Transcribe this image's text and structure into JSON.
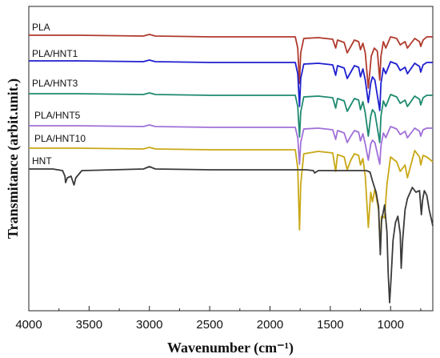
{
  "chart_data": {
    "type": "line",
    "title": "",
    "xlabel": "Wavenumber (cm⁻¹)",
    "ylabel": "Transmitance (arbit.unit.)",
    "xlim": [
      4000,
      650
    ],
    "x_reversed": true,
    "y_ticks_shown": false,
    "grid": false,
    "legend": "labels-above-each-curve",
    "xticks": [
      "4000",
      "3500",
      "3000",
      "2500",
      "2000",
      "1500",
      "1000"
    ],
    "series": [
      {
        "name": "PLA",
        "color": "#b03a2e",
        "points": [
          [
            4000,
            44
          ],
          [
            3600,
            44
          ],
          [
            3050,
            45
          ],
          [
            3000,
            43
          ],
          [
            2950,
            45
          ],
          [
            2500,
            46
          ],
          [
            2100,
            46
          ],
          [
            1900,
            46
          ],
          [
            1790,
            46
          ],
          [
            1770,
            60
          ],
          [
            1756,
            104
          ],
          [
            1745,
            66
          ],
          [
            1720,
            48
          ],
          [
            1600,
            47
          ],
          [
            1480,
            49
          ],
          [
            1455,
            60
          ],
          [
            1440,
            50
          ],
          [
            1385,
            53
          ],
          [
            1360,
            66
          ],
          [
            1330,
            58
          ],
          [
            1300,
            50
          ],
          [
            1265,
            52
          ],
          [
            1250,
            62
          ],
          [
            1230,
            54
          ],
          [
            1210,
            66
          ],
          [
            1185,
            110
          ],
          [
            1160,
            70
          ],
          [
            1135,
            60
          ],
          [
            1110,
            64
          ],
          [
            1090,
            100
          ],
          [
            1080,
            70
          ],
          [
            1060,
            52
          ],
          [
            1040,
            60
          ],
          [
            1000,
            46
          ],
          [
            950,
            48
          ],
          [
            920,
            56
          ],
          [
            880,
            52
          ],
          [
            860,
            60
          ],
          [
            800,
            48
          ],
          [
            760,
            52
          ],
          [
            750,
            58
          ],
          [
            730,
            50
          ],
          [
            700,
            46
          ],
          [
            650,
            46
          ]
        ]
      },
      {
        "name": "PLA/HNT1",
        "color": "#1f1fcf",
        "points": [
          [
            4000,
            76
          ],
          [
            3600,
            76
          ],
          [
            3050,
            77
          ],
          [
            3000,
            75
          ],
          [
            2950,
            77
          ],
          [
            2500,
            78
          ],
          [
            2100,
            78
          ],
          [
            1900,
            78
          ],
          [
            1790,
            78
          ],
          [
            1770,
            92
          ],
          [
            1755,
            133
          ],
          [
            1745,
            98
          ],
          [
            1720,
            80
          ],
          [
            1600,
            79
          ],
          [
            1480,
            81
          ],
          [
            1455,
            94
          ],
          [
            1440,
            82
          ],
          [
            1385,
            85
          ],
          [
            1360,
            98
          ],
          [
            1330,
            90
          ],
          [
            1300,
            82
          ],
          [
            1265,
            84
          ],
          [
            1250,
            96
          ],
          [
            1230,
            86
          ],
          [
            1210,
            100
          ],
          [
            1185,
            128
          ],
          [
            1165,
            104
          ],
          [
            1150,
            96
          ],
          [
            1130,
            100
          ],
          [
            1090,
            138
          ],
          [
            1080,
            104
          ],
          [
            1060,
            85
          ],
          [
            1040,
            92
          ],
          [
            1000,
            77
          ],
          [
            950,
            80
          ],
          [
            920,
            88
          ],
          [
            880,
            84
          ],
          [
            860,
            92
          ],
          [
            800,
            79
          ],
          [
            760,
            83
          ],
          [
            750,
            90
          ],
          [
            730,
            81
          ],
          [
            700,
            78
          ],
          [
            650,
            78
          ]
        ]
      },
      {
        "name": "PLA/HNT3",
        "color": "#1e8a70",
        "points": [
          [
            4000,
            117
          ],
          [
            3600,
            117
          ],
          [
            3050,
            118
          ],
          [
            3000,
            116
          ],
          [
            2950,
            118
          ],
          [
            2500,
            119
          ],
          [
            2100,
            119
          ],
          [
            1900,
            119
          ],
          [
            1790,
            119
          ],
          [
            1770,
            133
          ],
          [
            1755,
            171
          ],
          [
            1745,
            140
          ],
          [
            1720,
            121
          ],
          [
            1600,
            120
          ],
          [
            1480,
            122
          ],
          [
            1455,
            135
          ],
          [
            1440,
            123
          ],
          [
            1385,
            126
          ],
          [
            1360,
            139
          ],
          [
            1330,
            131
          ],
          [
            1300,
            123
          ],
          [
            1265,
            125
          ],
          [
            1250,
            137
          ],
          [
            1230,
            127
          ],
          [
            1210,
            141
          ],
          [
            1185,
            170
          ],
          [
            1165,
            145
          ],
          [
            1150,
            137
          ],
          [
            1130,
            141
          ],
          [
            1090,
            178
          ],
          [
            1080,
            145
          ],
          [
            1060,
            126
          ],
          [
            1040,
            133
          ],
          [
            1000,
            118
          ],
          [
            950,
            121
          ],
          [
            920,
            129
          ],
          [
            880,
            125
          ],
          [
            860,
            133
          ],
          [
            800,
            120
          ],
          [
            760,
            124
          ],
          [
            750,
            131
          ],
          [
            730,
            122
          ],
          [
            700,
            119
          ],
          [
            650,
            119
          ]
        ]
      },
      {
        "name": "PLA/HNT5",
        "color": "#a070d8",
        "points": [
          [
            4000,
            157
          ],
          [
            3600,
            157
          ],
          [
            3050,
            158
          ],
          [
            3000,
            156
          ],
          [
            2950,
            158
          ],
          [
            2500,
            159
          ],
          [
            2100,
            159
          ],
          [
            1900,
            159
          ],
          [
            1790,
            159
          ],
          [
            1770,
            172
          ],
          [
            1755,
            205
          ],
          [
            1745,
            178
          ],
          [
            1720,
            161
          ],
          [
            1600,
            160
          ],
          [
            1480,
            162
          ],
          [
            1455,
            174
          ],
          [
            1440,
            163
          ],
          [
            1385,
            166
          ],
          [
            1360,
            178
          ],
          [
            1330,
            170
          ],
          [
            1300,
            163
          ],
          [
            1265,
            165
          ],
          [
            1250,
            176
          ],
          [
            1230,
            167
          ],
          [
            1210,
            180
          ],
          [
            1185,
            200
          ],
          [
            1165,
            180
          ],
          [
            1150,
            175
          ],
          [
            1130,
            178
          ],
          [
            1090,
            205
          ],
          [
            1080,
            182
          ],
          [
            1060,
            166
          ],
          [
            1040,
            172
          ],
          [
            1000,
            158
          ],
          [
            950,
            161
          ],
          [
            920,
            168
          ],
          [
            880,
            164
          ],
          [
            860,
            172
          ],
          [
            800,
            160
          ],
          [
            760,
            164
          ],
          [
            750,
            170
          ],
          [
            730,
            162
          ],
          [
            700,
            160
          ],
          [
            650,
            160
          ]
        ]
      },
      {
        "name": "PLA/HNT10",
        "color": "#c9a815",
        "points": [
          [
            4000,
            185
          ],
          [
            3600,
            185
          ],
          [
            3050,
            186
          ],
          [
            3000,
            184
          ],
          [
            2950,
            186
          ],
          [
            2500,
            187
          ],
          [
            2100,
            187
          ],
          [
            1900,
            187
          ],
          [
            1790,
            187
          ],
          [
            1770,
            210
          ],
          [
            1755,
            287
          ],
          [
            1745,
            230
          ],
          [
            1720,
            192
          ],
          [
            1600,
            189
          ],
          [
            1480,
            191
          ],
          [
            1455,
            214
          ],
          [
            1440,
            193
          ],
          [
            1385,
            196
          ],
          [
            1360,
            212
          ],
          [
            1330,
            200
          ],
          [
            1300,
            192
          ],
          [
            1265,
            194
          ],
          [
            1250,
            206
          ],
          [
            1230,
            198
          ],
          [
            1210,
            220
          ],
          [
            1185,
            284
          ],
          [
            1165,
            240
          ],
          [
            1150,
            252
          ],
          [
            1130,
            236
          ],
          [
            1100,
            262
          ],
          [
            1085,
            312
          ],
          [
            1075,
            270
          ],
          [
            1050,
            272
          ],
          [
            1030,
            230
          ],
          [
            1000,
            196
          ],
          [
            950,
            202
          ],
          [
            920,
            214
          ],
          [
            880,
            206
          ],
          [
            860,
            222
          ],
          [
            800,
            188
          ],
          [
            760,
            196
          ],
          [
            750,
            206
          ],
          [
            730,
            194
          ],
          [
            700,
            196
          ],
          [
            650,
            202
          ]
        ]
      },
      {
        "name": "HNT",
        "color": "#3a3a3a",
        "points": [
          [
            4000,
            211
          ],
          [
            3800,
            211
          ],
          [
            3720,
            213
          ],
          [
            3700,
            220
          ],
          [
            3695,
            228
          ],
          [
            3680,
            222
          ],
          [
            3650,
            220
          ],
          [
            3625,
            231
          ],
          [
            3610,
            222
          ],
          [
            3560,
            213
          ],
          [
            3300,
            212
          ],
          [
            3050,
            211
          ],
          [
            3000,
            208
          ],
          [
            2950,
            211
          ],
          [
            2500,
            212
          ],
          [
            2100,
            212
          ],
          [
            1900,
            212
          ],
          [
            1800,
            212
          ],
          [
            1700,
            212
          ],
          [
            1640,
            213
          ],
          [
            1630,
            216
          ],
          [
            1600,
            213
          ],
          [
            1500,
            213
          ],
          [
            1200,
            213
          ],
          [
            1170,
            215
          ],
          [
            1150,
            226
          ],
          [
            1120,
            240
          ],
          [
            1100,
            258
          ],
          [
            1085,
            318
          ],
          [
            1075,
            276
          ],
          [
            1050,
            256
          ],
          [
            1030,
            290
          ],
          [
            1020,
            340
          ],
          [
            1008,
            378
          ],
          [
            997,
            350
          ],
          [
            980,
            300
          ],
          [
            960,
            278
          ],
          [
            940,
            270
          ],
          [
            920,
            292
          ],
          [
            912,
            335
          ],
          [
            900,
            300
          ],
          [
            880,
            262
          ],
          [
            860,
            248
          ],
          [
            820,
            234
          ],
          [
            790,
            240
          ],
          [
            760,
            238
          ],
          [
            745,
            268
          ],
          [
            735,
            250
          ],
          [
            720,
            238
          ],
          [
            700,
            244
          ],
          [
            680,
            262
          ],
          [
            660,
            275
          ],
          [
            650,
            282
          ]
        ]
      }
    ]
  }
}
